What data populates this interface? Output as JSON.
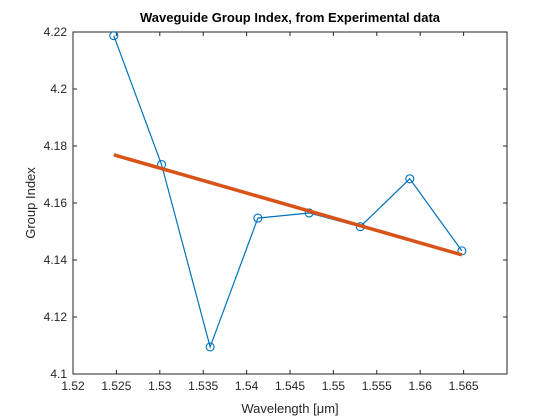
{
  "chart_data": {
    "type": "line",
    "title": "Waveguide Group Index, from Experimental data",
    "xlabel": "Wavelength [μm]",
    "ylabel": "Group Index",
    "xlim": [
      1.52,
      1.57
    ],
    "ylim": [
      4.1,
      4.22
    ],
    "x_ticks": [
      "1.52",
      "1.525",
      "1.53",
      "1.535",
      "1.54",
      "1.545",
      "1.55",
      "1.555",
      "1.56",
      "1.565"
    ],
    "x_tick_values": [
      1.52,
      1.525,
      1.53,
      1.535,
      1.54,
      1.545,
      1.55,
      1.555,
      1.56,
      1.565
    ],
    "y_ticks": [
      "4.1",
      "4.12",
      "4.14",
      "4.16",
      "4.18",
      "4.2",
      "4.22"
    ],
    "y_tick_values": [
      4.1,
      4.12,
      4.14,
      4.16,
      4.18,
      4.2,
      4.22
    ],
    "grid": false,
    "series": [
      {
        "type": "line-marker",
        "marker": "circle",
        "color": "#0072BD",
        "x": [
          1.5247,
          1.5302,
          1.5358,
          1.5413,
          1.5472,
          1.5531,
          1.5588,
          1.5648
        ],
        "y": [
          4.2187,
          4.1735,
          4.1095,
          4.1547,
          4.1565,
          4.1517,
          4.1685,
          4.1432
        ]
      },
      {
        "type": "fit-line",
        "color": "#D95319",
        "x": [
          1.5247,
          1.5648
        ],
        "y": [
          4.1769,
          4.1418
        ]
      }
    ]
  }
}
